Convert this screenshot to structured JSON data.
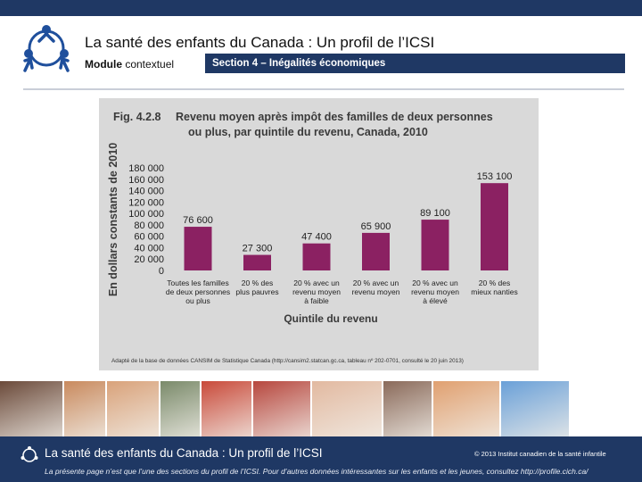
{
  "header": {
    "title": "La santé des enfants du Canada : Un profil de l’ICSI",
    "module_bold": "Module",
    "module_rest": " contextuel",
    "section": "Section 4 – Inégalités économiques"
  },
  "colors": {
    "navy": "#1f3864",
    "bar": "#8b2162",
    "figure_bg": "#d9d9d9"
  },
  "chart_data": {
    "type": "bar",
    "fig_number": "Fig. 4.2.8",
    "title_line1": "Revenu moyen après impôt des familles de deux personnes",
    "title_line2": "ou plus, par quintile du revenu, Canada, 2010",
    "ylabel": "En dollars constants de 2010",
    "xlabel": "Quintile du revenu",
    "ylim": [
      0,
      180000
    ],
    "yticks": [
      "0",
      "20 000",
      "40 000",
      "60 000",
      "80 000",
      "100 000",
      "120 000",
      "140 000",
      "160 000",
      "180 000"
    ],
    "categories": [
      [
        "Toutes les familles",
        "de deux personnes",
        "ou plus"
      ],
      [
        "20 % des",
        "plus pauvres"
      ],
      [
        "20 % avec un",
        "revenu moyen",
        "à faible"
      ],
      [
        "20 % avec un",
        "revenu moyen"
      ],
      [
        "20 % avec un",
        "revenu moyen",
        "à élevé"
      ],
      [
        "20 % des",
        "mieux nanties"
      ]
    ],
    "values": [
      76600,
      27300,
      47400,
      65900,
      89100,
      153100
    ],
    "value_labels": [
      "76 600",
      "27 300",
      "47 400",
      "65 900",
      "89 100",
      "153 100"
    ],
    "grid": false,
    "source": "Adapté de la base de données CANSIM de Statistique Canada (http://cansim2.statcan.gc.ca, tableau nº 202-0701, consulté le 20 juin 2013)"
  },
  "footer": {
    "title": "La santé des enfants du Canada : Un profil de l’ICSI",
    "copyright": "© 2013 Institut canadien de la santé infantile",
    "note": "La présente page n’est que l’une des sections du profil de l’ICSI. Pour d’autres données intéressantes sur les enfants et les jeunes, consultez http://profile.cich.ca/"
  },
  "photos": [
    {
      "name": "photo-mother-child",
      "fill": "#6b4a3a"
    },
    {
      "name": "photo-toddler",
      "fill": "#c98a5e"
    },
    {
      "name": "photo-girl-books",
      "fill": "#d9a27a"
    },
    {
      "name": "photo-wheelchair",
      "fill": "#7a8a6a"
    },
    {
      "name": "photo-winter-child",
      "fill": "#c94a3a"
    },
    {
      "name": "photo-soccer-team",
      "fill": "#b7473e"
    },
    {
      "name": "photo-pregnancy",
      "fill": "#e2b9a0"
    },
    {
      "name": "photo-children-smiling",
      "fill": "#8a6a5a"
    },
    {
      "name": "photo-girl-toothbrush",
      "fill": "#e0a070"
    },
    {
      "name": "photo-kids-jumping",
      "fill": "#6aa0d8"
    }
  ]
}
